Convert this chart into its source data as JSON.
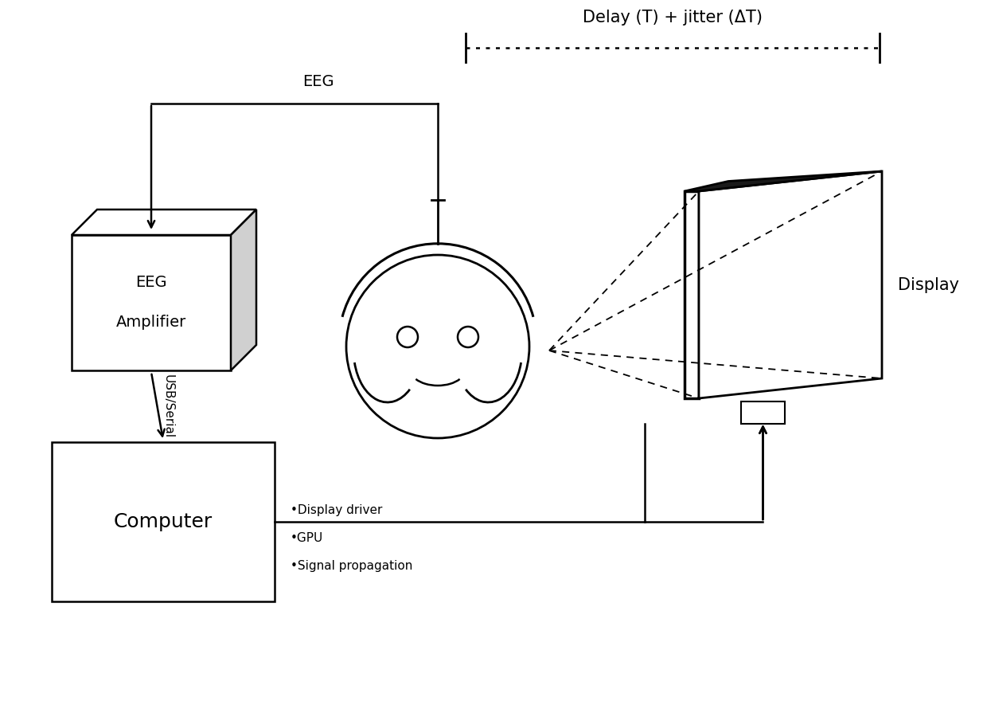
{
  "bg_color": "#ffffff",
  "line_color": "#000000",
  "delay_label": "Delay (T) + jitter (ΔT)",
  "eeg_label": "EEG",
  "usb_label": "USB/Serial",
  "computer_label": "Computer",
  "eeg_amp_label1": "EEG",
  "eeg_amp_label2": "Amplifier",
  "display_label": "Display",
  "bullet_labels": [
    "•Display driver",
    "•GPU",
    "•Signal propagation"
  ],
  "figsize": [
    12.4,
    8.85
  ],
  "dpi": 100
}
